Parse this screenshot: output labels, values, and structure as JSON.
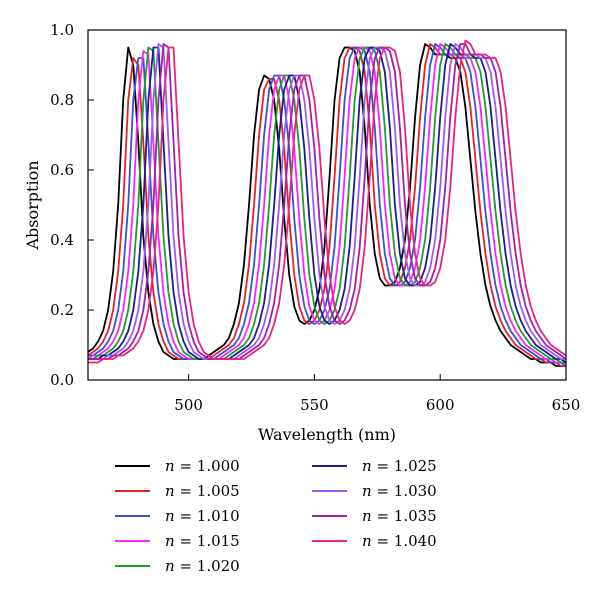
{
  "chart_data": {
    "type": "line",
    "title": "",
    "xlabel": "Wavelength (nm)",
    "ylabel": "Absorption",
    "xlim": [
      460,
      650
    ],
    "ylim": [
      0.0,
      1.0
    ],
    "xticks": [
      500,
      550,
      600,
      650
    ],
    "yticks": [
      0.0,
      0.2,
      0.4,
      0.6,
      0.8,
      1.0
    ],
    "xtick_labels": [
      "500",
      "550",
      "600",
      "650"
    ],
    "ytick_labels": [
      "0.0",
      "0.2",
      "0.4",
      "0.6",
      "0.8",
      "1.0"
    ],
    "grid": false,
    "legend_position": "bottom",
    "legend_prefix": "n",
    "x": [
      460,
      462,
      464,
      466,
      468,
      470,
      472,
      474,
      476,
      478,
      480,
      482,
      484,
      486,
      488,
      490,
      492,
      494,
      496,
      498,
      500,
      502,
      504,
      506,
      508,
      510,
      512,
      514,
      516,
      518,
      520,
      522,
      524,
      526,
      528,
      530,
      532,
      534,
      536,
      538,
      540,
      542,
      544,
      546,
      548,
      550,
      552,
      554,
      556,
      558,
      560,
      562,
      564,
      566,
      568,
      570,
      572,
      574,
      576,
      578,
      580,
      582,
      584,
      586,
      588,
      590,
      592,
      594,
      596,
      598,
      600,
      602,
      604,
      606,
      608,
      610,
      612,
      614,
      616,
      618,
      620,
      622,
      624,
      626,
      628,
      630,
      632,
      634,
      636,
      638,
      640,
      642,
      644,
      646,
      648,
      650
    ],
    "series": [
      {
        "name": "n = 1.000",
        "color": "#000000",
        "values": [
          0.08,
          0.09,
          0.11,
          0.14,
          0.2,
          0.31,
          0.5,
          0.8,
          0.95,
          0.9,
          0.68,
          0.41,
          0.25,
          0.16,
          0.11,
          0.08,
          0.07,
          0.06,
          0.06,
          0.06,
          0.06,
          0.06,
          0.06,
          0.06,
          0.07,
          0.08,
          0.09,
          0.1,
          0.12,
          0.16,
          0.22,
          0.33,
          0.5,
          0.7,
          0.83,
          0.87,
          0.86,
          0.8,
          0.66,
          0.46,
          0.3,
          0.21,
          0.17,
          0.16,
          0.17,
          0.2,
          0.26,
          0.38,
          0.58,
          0.8,
          0.92,
          0.95,
          0.95,
          0.94,
          0.88,
          0.72,
          0.5,
          0.36,
          0.29,
          0.27,
          0.27,
          0.28,
          0.32,
          0.4,
          0.55,
          0.75,
          0.9,
          0.96,
          0.95,
          0.93,
          0.93,
          0.93,
          0.92,
          0.92,
          0.88,
          0.78,
          0.63,
          0.48,
          0.36,
          0.27,
          0.21,
          0.17,
          0.14,
          0.12,
          0.1,
          0.09,
          0.08,
          0.07,
          0.06,
          0.06,
          0.05,
          0.05,
          0.05,
          0.04,
          0.04,
          0.04
        ]
      },
      {
        "name": "n = 1.005",
        "color": "#e8202a",
        "values": [
          0.07,
          0.08,
          0.09,
          0.11,
          0.14,
          0.2,
          0.31,
          0.5,
          0.8,
          0.92,
          0.9,
          0.68,
          0.41,
          0.25,
          0.16,
          0.11,
          0.08,
          0.07,
          0.06,
          0.06,
          0.06,
          0.06,
          0.06,
          0.06,
          0.06,
          0.07,
          0.08,
          0.09,
          0.1,
          0.12,
          0.16,
          0.22,
          0.33,
          0.5,
          0.7,
          0.83,
          0.86,
          0.86,
          0.8,
          0.66,
          0.46,
          0.3,
          0.21,
          0.17,
          0.16,
          0.17,
          0.2,
          0.26,
          0.38,
          0.58,
          0.8,
          0.92,
          0.95,
          0.95,
          0.94,
          0.88,
          0.72,
          0.5,
          0.36,
          0.29,
          0.27,
          0.27,
          0.28,
          0.32,
          0.4,
          0.55,
          0.75,
          0.9,
          0.96,
          0.95,
          0.93,
          0.93,
          0.93,
          0.92,
          0.92,
          0.88,
          0.78,
          0.63,
          0.48,
          0.36,
          0.27,
          0.21,
          0.17,
          0.14,
          0.12,
          0.1,
          0.09,
          0.08,
          0.07,
          0.06,
          0.06,
          0.05,
          0.05,
          0.05,
          0.04,
          0.04
        ]
      },
      {
        "name": "n = 1.010",
        "color": "#3355cc",
        "values": [
          0.07,
          0.07,
          0.08,
          0.09,
          0.11,
          0.14,
          0.2,
          0.31,
          0.5,
          0.8,
          0.92,
          0.92,
          0.68,
          0.41,
          0.25,
          0.16,
          0.11,
          0.08,
          0.07,
          0.06,
          0.06,
          0.06,
          0.06,
          0.06,
          0.06,
          0.06,
          0.07,
          0.08,
          0.09,
          0.1,
          0.12,
          0.16,
          0.22,
          0.33,
          0.5,
          0.7,
          0.83,
          0.87,
          0.87,
          0.8,
          0.66,
          0.46,
          0.3,
          0.21,
          0.17,
          0.16,
          0.17,
          0.2,
          0.26,
          0.38,
          0.58,
          0.8,
          0.92,
          0.95,
          0.95,
          0.94,
          0.88,
          0.72,
          0.5,
          0.36,
          0.29,
          0.27,
          0.27,
          0.28,
          0.32,
          0.4,
          0.55,
          0.75,
          0.9,
          0.96,
          0.95,
          0.93,
          0.93,
          0.93,
          0.92,
          0.92,
          0.88,
          0.78,
          0.63,
          0.48,
          0.36,
          0.27,
          0.21,
          0.17,
          0.14,
          0.12,
          0.1,
          0.09,
          0.08,
          0.07,
          0.06,
          0.06,
          0.05,
          0.05,
          0.05,
          0.04
        ]
      },
      {
        "name": "n = 1.015",
        "color": "#ff22ff",
        "values": [
          0.06,
          0.07,
          0.07,
          0.08,
          0.09,
          0.11,
          0.14,
          0.2,
          0.31,
          0.5,
          0.8,
          0.94,
          0.93,
          0.68,
          0.41,
          0.25,
          0.16,
          0.11,
          0.08,
          0.07,
          0.06,
          0.06,
          0.06,
          0.06,
          0.06,
          0.06,
          0.06,
          0.07,
          0.08,
          0.09,
          0.1,
          0.12,
          0.16,
          0.22,
          0.33,
          0.5,
          0.7,
          0.83,
          0.87,
          0.87,
          0.8,
          0.66,
          0.46,
          0.3,
          0.21,
          0.17,
          0.16,
          0.17,
          0.2,
          0.26,
          0.38,
          0.58,
          0.8,
          0.92,
          0.95,
          0.95,
          0.94,
          0.88,
          0.72,
          0.5,
          0.36,
          0.29,
          0.27,
          0.27,
          0.28,
          0.32,
          0.4,
          0.55,
          0.75,
          0.9,
          0.96,
          0.95,
          0.93,
          0.93,
          0.93,
          0.92,
          0.92,
          0.88,
          0.78,
          0.63,
          0.48,
          0.36,
          0.27,
          0.21,
          0.17,
          0.14,
          0.12,
          0.1,
          0.09,
          0.08,
          0.07,
          0.06,
          0.06,
          0.05,
          0.05,
          0.05
        ]
      },
      {
        "name": "n = 1.020",
        "color": "#1a9e2a",
        "values": [
          0.06,
          0.06,
          0.07,
          0.07,
          0.08,
          0.09,
          0.11,
          0.14,
          0.2,
          0.31,
          0.5,
          0.8,
          0.95,
          0.94,
          0.68,
          0.41,
          0.25,
          0.16,
          0.11,
          0.08,
          0.07,
          0.06,
          0.06,
          0.06,
          0.06,
          0.06,
          0.06,
          0.06,
          0.07,
          0.08,
          0.09,
          0.1,
          0.12,
          0.16,
          0.22,
          0.33,
          0.5,
          0.7,
          0.83,
          0.87,
          0.87,
          0.8,
          0.66,
          0.46,
          0.3,
          0.21,
          0.17,
          0.16,
          0.17,
          0.2,
          0.26,
          0.38,
          0.58,
          0.8,
          0.92,
          0.95,
          0.95,
          0.94,
          0.88,
          0.72,
          0.5,
          0.36,
          0.29,
          0.27,
          0.27,
          0.28,
          0.32,
          0.4,
          0.55,
          0.75,
          0.9,
          0.96,
          0.95,
          0.93,
          0.93,
          0.93,
          0.92,
          0.92,
          0.88,
          0.78,
          0.63,
          0.48,
          0.36,
          0.27,
          0.21,
          0.17,
          0.14,
          0.12,
          0.1,
          0.09,
          0.08,
          0.07,
          0.06,
          0.06,
          0.05,
          0.05
        ]
      },
      {
        "name": "n = 1.025",
        "color": "#1c1c8f",
        "values": [
          0.06,
          0.06,
          0.06,
          0.07,
          0.07,
          0.08,
          0.09,
          0.11,
          0.14,
          0.2,
          0.31,
          0.5,
          0.8,
          0.95,
          0.95,
          0.68,
          0.41,
          0.25,
          0.16,
          0.11,
          0.08,
          0.07,
          0.06,
          0.06,
          0.06,
          0.06,
          0.06,
          0.06,
          0.06,
          0.07,
          0.08,
          0.09,
          0.1,
          0.12,
          0.16,
          0.22,
          0.33,
          0.5,
          0.7,
          0.83,
          0.87,
          0.87,
          0.8,
          0.66,
          0.46,
          0.3,
          0.21,
          0.17,
          0.16,
          0.17,
          0.2,
          0.26,
          0.38,
          0.58,
          0.8,
          0.92,
          0.95,
          0.95,
          0.94,
          0.88,
          0.72,
          0.5,
          0.36,
          0.29,
          0.27,
          0.27,
          0.28,
          0.32,
          0.4,
          0.55,
          0.75,
          0.9,
          0.96,
          0.95,
          0.93,
          0.93,
          0.93,
          0.92,
          0.92,
          0.88,
          0.78,
          0.63,
          0.48,
          0.36,
          0.27,
          0.21,
          0.17,
          0.14,
          0.12,
          0.1,
          0.09,
          0.08,
          0.07,
          0.06,
          0.06,
          0.05
        ]
      },
      {
        "name": "n = 1.030",
        "color": "#9b5cf0",
        "values": [
          0.06,
          0.06,
          0.06,
          0.06,
          0.07,
          0.07,
          0.08,
          0.09,
          0.11,
          0.14,
          0.2,
          0.31,
          0.5,
          0.8,
          0.96,
          0.95,
          0.68,
          0.41,
          0.25,
          0.16,
          0.11,
          0.08,
          0.07,
          0.06,
          0.06,
          0.06,
          0.06,
          0.06,
          0.06,
          0.06,
          0.07,
          0.08,
          0.09,
          0.1,
          0.12,
          0.16,
          0.22,
          0.33,
          0.5,
          0.7,
          0.83,
          0.87,
          0.87,
          0.8,
          0.66,
          0.46,
          0.3,
          0.21,
          0.17,
          0.16,
          0.17,
          0.2,
          0.26,
          0.38,
          0.58,
          0.8,
          0.92,
          0.95,
          0.95,
          0.94,
          0.88,
          0.72,
          0.5,
          0.36,
          0.29,
          0.27,
          0.27,
          0.28,
          0.32,
          0.4,
          0.55,
          0.75,
          0.9,
          0.96,
          0.95,
          0.93,
          0.93,
          0.93,
          0.92,
          0.92,
          0.88,
          0.78,
          0.63,
          0.48,
          0.36,
          0.27,
          0.21,
          0.17,
          0.14,
          0.12,
          0.1,
          0.09,
          0.08,
          0.07,
          0.06,
          0.06
        ]
      },
      {
        "name": "n = 1.035",
        "color": "#a020a8",
        "values": [
          0.06,
          0.06,
          0.06,
          0.06,
          0.06,
          0.07,
          0.07,
          0.08,
          0.09,
          0.11,
          0.14,
          0.2,
          0.31,
          0.5,
          0.8,
          0.96,
          0.95,
          0.68,
          0.41,
          0.25,
          0.16,
          0.11,
          0.08,
          0.07,
          0.06,
          0.06,
          0.06,
          0.06,
          0.06,
          0.06,
          0.06,
          0.07,
          0.08,
          0.09,
          0.1,
          0.12,
          0.16,
          0.22,
          0.33,
          0.5,
          0.7,
          0.83,
          0.87,
          0.87,
          0.8,
          0.66,
          0.46,
          0.3,
          0.21,
          0.17,
          0.16,
          0.17,
          0.2,
          0.26,
          0.38,
          0.58,
          0.8,
          0.92,
          0.95,
          0.95,
          0.94,
          0.88,
          0.72,
          0.5,
          0.36,
          0.29,
          0.27,
          0.27,
          0.28,
          0.32,
          0.4,
          0.55,
          0.75,
          0.9,
          0.96,
          0.96,
          0.93,
          0.93,
          0.93,
          0.92,
          0.92,
          0.88,
          0.78,
          0.63,
          0.48,
          0.36,
          0.27,
          0.21,
          0.17,
          0.14,
          0.12,
          0.1,
          0.09,
          0.08,
          0.07,
          0.06
        ]
      },
      {
        "name": "n = 1.040",
        "color": "#e8247c",
        "values": [
          0.05,
          0.05,
          0.05,
          0.06,
          0.06,
          0.06,
          0.07,
          0.07,
          0.08,
          0.09,
          0.11,
          0.14,
          0.2,
          0.31,
          0.5,
          0.8,
          0.95,
          0.95,
          0.68,
          0.41,
          0.25,
          0.16,
          0.11,
          0.08,
          0.07,
          0.06,
          0.06,
          0.06,
          0.06,
          0.06,
          0.06,
          0.06,
          0.07,
          0.08,
          0.09,
          0.1,
          0.12,
          0.16,
          0.22,
          0.33,
          0.5,
          0.7,
          0.83,
          0.87,
          0.87,
          0.8,
          0.66,
          0.46,
          0.3,
          0.21,
          0.17,
          0.16,
          0.17,
          0.2,
          0.26,
          0.38,
          0.58,
          0.8,
          0.92,
          0.95,
          0.95,
          0.94,
          0.88,
          0.72,
          0.5,
          0.36,
          0.29,
          0.27,
          0.27,
          0.28,
          0.32,
          0.4,
          0.55,
          0.75,
          0.9,
          0.97,
          0.96,
          0.93,
          0.93,
          0.93,
          0.92,
          0.92,
          0.88,
          0.78,
          0.63,
          0.48,
          0.36,
          0.27,
          0.21,
          0.17,
          0.14,
          0.12,
          0.1,
          0.09,
          0.08,
          0.07
        ]
      }
    ]
  }
}
